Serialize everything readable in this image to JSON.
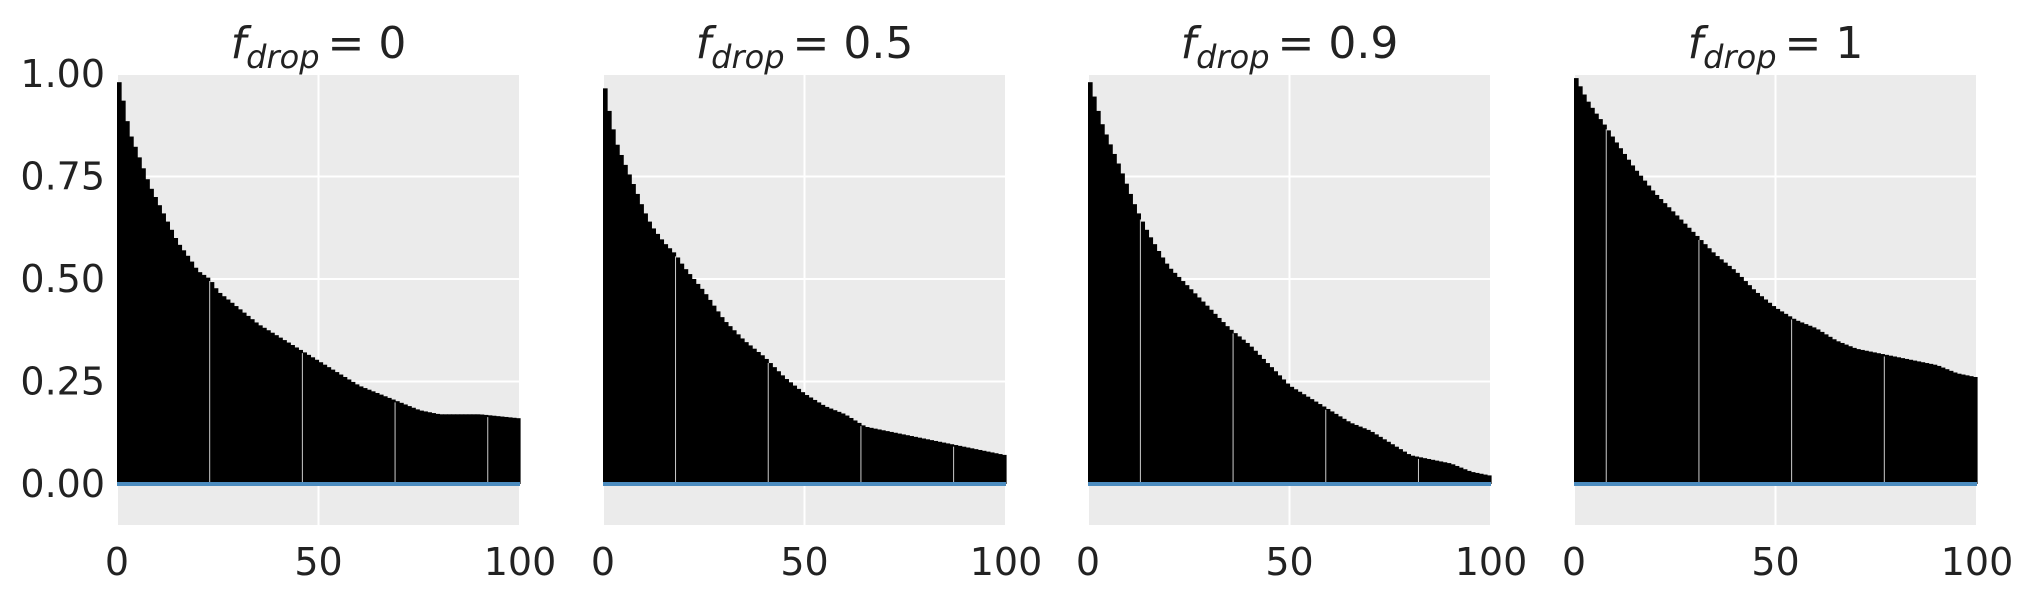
{
  "chart_data": {
    "type": "bar",
    "colors": {
      "bars": "#000000",
      "baseline": "#4c8cbf",
      "panel_bg": "#ebebeb",
      "grid": "#ffffff"
    },
    "grid": true,
    "x_ticks": [
      "0",
      "50",
      "100"
    ],
    "y_ticks": [
      "0.00",
      "0.25",
      "0.50",
      "0.75",
      "1.00"
    ],
    "xlim": [
      0,
      100
    ],
    "ylim": [
      -0.1,
      1.0
    ],
    "panels": [
      {
        "title_var": "f",
        "title_sub": "drop",
        "title_rest": "= 0",
        "knots_x": [
          0,
          1,
          2,
          3,
          5,
          8,
          10,
          13,
          15,
          18,
          20,
          23,
          25,
          30,
          35,
          40,
          45,
          50,
          55,
          60,
          65,
          70,
          75,
          80,
          85,
          90,
          95,
          100
        ],
        "knots_y": [
          1.0,
          0.96,
          0.91,
          0.86,
          0.81,
          0.73,
          0.69,
          0.63,
          0.59,
          0.55,
          0.52,
          0.5,
          0.47,
          0.43,
          0.39,
          0.36,
          0.33,
          0.3,
          0.27,
          0.24,
          0.22,
          0.2,
          0.18,
          0.17,
          0.17,
          0.17,
          0.165,
          0.16
        ]
      },
      {
        "title_var": "f",
        "title_sub": "drop",
        "title_rest": "= 0.5",
        "knots_x": [
          0,
          1,
          2,
          3,
          5,
          8,
          10,
          12,
          15,
          18,
          20,
          25,
          30,
          35,
          40,
          45,
          50,
          55,
          60,
          65,
          70,
          75,
          80,
          85,
          90,
          95,
          100
        ],
        "knots_y": [
          1.0,
          0.93,
          0.89,
          0.84,
          0.79,
          0.72,
          0.67,
          0.63,
          0.59,
          0.56,
          0.53,
          0.47,
          0.4,
          0.35,
          0.31,
          0.26,
          0.22,
          0.19,
          0.17,
          0.14,
          0.13,
          0.12,
          0.11,
          0.1,
          0.09,
          0.08,
          0.07
        ]
      },
      {
        "title_var": "f",
        "title_sub": "drop",
        "title_rest": "= 0.9",
        "knots_x": [
          0,
          1,
          2,
          3,
          5,
          8,
          10,
          12,
          15,
          18,
          20,
          25,
          30,
          35,
          40,
          45,
          50,
          55,
          60,
          65,
          70,
          75,
          80,
          85,
          90,
          95,
          100
        ],
        "knots_y": [
          1.0,
          0.96,
          0.93,
          0.89,
          0.84,
          0.77,
          0.72,
          0.67,
          0.61,
          0.56,
          0.53,
          0.48,
          0.43,
          0.38,
          0.34,
          0.29,
          0.24,
          0.21,
          0.18,
          0.15,
          0.13,
          0.1,
          0.07,
          0.06,
          0.05,
          0.03,
          0.02
        ]
      },
      {
        "title_var": "f",
        "title_sub": "drop",
        "title_rest": "= 1",
        "knots_x": [
          0,
          1,
          2,
          3,
          5,
          8,
          10,
          15,
          20,
          25,
          30,
          35,
          40,
          45,
          50,
          55,
          60,
          65,
          70,
          75,
          80,
          85,
          90,
          95,
          100
        ],
        "knots_y": [
          1.0,
          0.98,
          0.96,
          0.94,
          0.91,
          0.87,
          0.84,
          0.77,
          0.71,
          0.66,
          0.61,
          0.56,
          0.52,
          0.47,
          0.43,
          0.4,
          0.38,
          0.35,
          0.33,
          0.32,
          0.31,
          0.3,
          0.29,
          0.27,
          0.26
        ]
      }
    ]
  }
}
